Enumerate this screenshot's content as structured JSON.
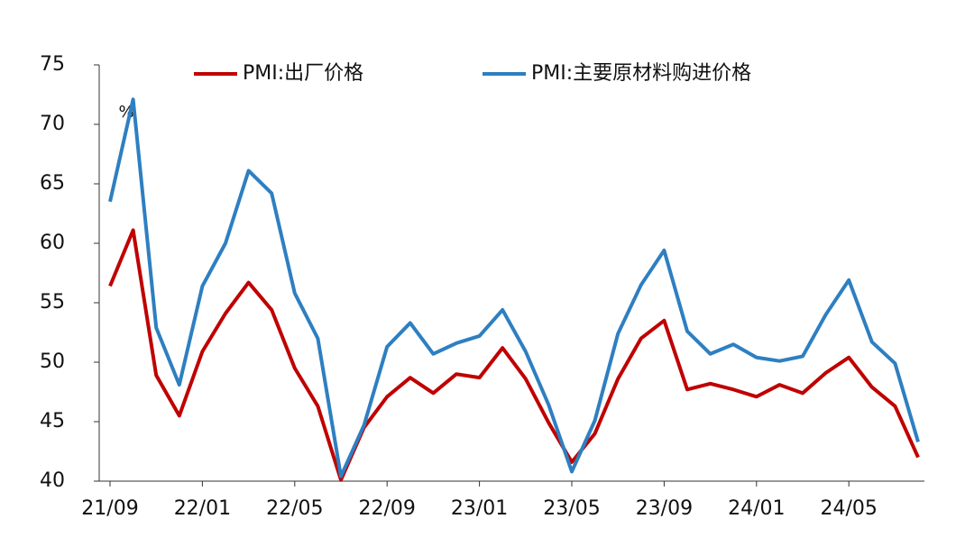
{
  "chart_data": {
    "type": "line",
    "y_unit": "%",
    "categories": [
      "21/09",
      null,
      null,
      null,
      "22/01",
      null,
      null,
      null,
      "22/05",
      null,
      null,
      null,
      "22/09",
      null,
      null,
      null,
      "23/01",
      null,
      null,
      null,
      "23/05",
      null,
      null,
      null,
      "23/09",
      null,
      null,
      null,
      "24/01",
      null,
      null,
      null,
      "24/05",
      null,
      null,
      null
    ],
    "series": [
      {
        "name": "PMI:出厂价格",
        "color": "#c00000",
        "values": [
          56.4,
          61.1,
          48.9,
          45.5,
          50.9,
          54.1,
          56.7,
          54.4,
          49.5,
          46.3,
          40.1,
          44.5,
          47.1,
          48.7,
          47.4,
          49.0,
          48.7,
          51.2,
          48.6,
          44.9,
          41.6,
          44.0,
          48.6,
          52.0,
          53.5,
          47.7,
          48.2,
          47.7,
          47.1,
          48.1,
          47.4,
          49.1,
          50.4,
          47.9,
          46.3,
          42.0
        ]
      },
      {
        "name": "PMI:主要原材料购进价格",
        "color": "#2e7fc1",
        "values": [
          63.5,
          72.1,
          52.9,
          48.1,
          56.4,
          60.0,
          66.1,
          64.2,
          55.8,
          52.0,
          40.4,
          44.7,
          51.3,
          53.3,
          50.7,
          51.6,
          52.2,
          54.4,
          50.9,
          46.4,
          40.8,
          45.1,
          52.4,
          56.5,
          59.4,
          52.6,
          50.7,
          51.5,
          50.4,
          50.1,
          50.5,
          54.0,
          56.9,
          51.7,
          49.9,
          43.3
        ]
      }
    ],
    "ylim": [
      40,
      75
    ],
    "yticks": [
      40,
      45,
      50,
      55,
      60,
      65,
      70,
      75
    ]
  }
}
